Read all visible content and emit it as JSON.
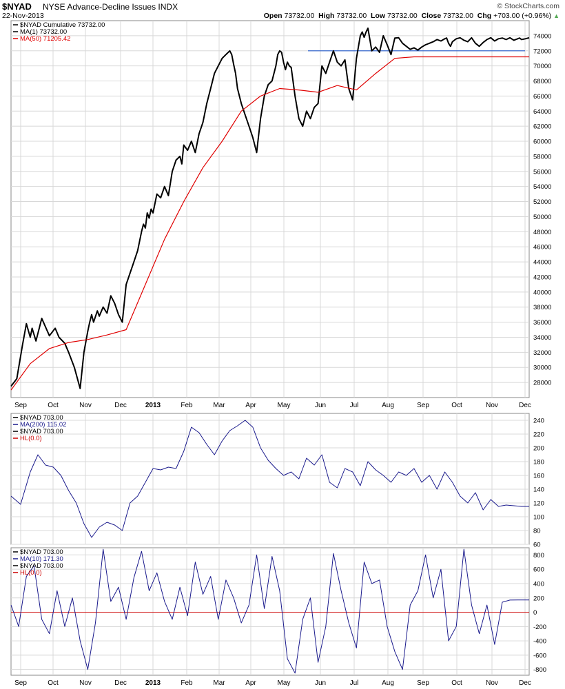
{
  "header": {
    "symbol": "$NYAD",
    "description": "NYSE Advance-Decline Issues  INDX",
    "date": "22-Nov-2013",
    "copyright": "© StockCharts.com",
    "open_label": "Open",
    "open": "73732.00",
    "high_label": "High",
    "high": "73732.00",
    "low_label": "Low",
    "low": "73732.00",
    "close_label": "Close",
    "close": "73732.00",
    "chg_label": "Chg",
    "chg": "+703.00 (+0.96%)"
  },
  "colors": {
    "price": "#000000",
    "ma50": "#e00000",
    "osc": "#1a1a8c",
    "hline": "#3366cc",
    "zero": "#cc0000",
    "grid": "#d8d8d8"
  },
  "months": [
    "Sep",
    "Oct",
    "Nov",
    "Dec",
    "2013",
    "Feb",
    "Mar",
    "Apr",
    "May",
    "Jun",
    "Jul",
    "Aug",
    "Sep",
    "Oct",
    "Nov",
    "Dec"
  ],
  "chart_data": [
    {
      "type": "line",
      "panel": "main",
      "legend": [
        "$NYAD  Cumulative 73732.00",
        "MA(1) 73732.00",
        "MA(50) 71205.42"
      ],
      "ylim": [
        26000,
        76000
      ],
      "yticks": [
        28000,
        30000,
        32000,
        34000,
        36000,
        38000,
        40000,
        42000,
        44000,
        46000,
        48000,
        50000,
        52000,
        54000,
        56000,
        58000,
        60000,
        62000,
        64000,
        66000,
        68000,
        70000,
        72000,
        74000
      ],
      "horizontal_line": 72000,
      "series": [
        {
          "name": "$NYAD  Cumulative",
          "x": [
            0,
            3,
            6,
            8,
            10,
            11,
            13,
            16,
            20,
            23,
            25,
            28,
            30,
            33,
            36,
            38,
            40,
            41,
            42,
            43,
            45,
            46,
            48,
            50,
            52,
            54,
            56,
            58,
            60,
            62,
            64,
            66,
            68,
            69,
            70,
            71,
            72,
            73,
            74,
            76,
            78,
            80,
            82,
            84,
            86,
            88,
            89,
            90,
            92,
            94,
            96,
            98,
            100,
            102,
            104,
            106,
            108,
            110,
            112,
            114,
            115,
            116,
            117,
            118,
            120,
            122,
            124,
            126,
            128,
            130,
            132,
            134,
            136,
            138,
            139,
            140,
            141,
            142,
            143,
            144,
            145,
            146,
            148,
            150,
            152,
            154,
            156,
            158,
            160,
            162,
            164,
            166,
            168,
            170,
            172,
            174,
            176,
            178,
            180,
            182,
            183,
            184,
            185,
            186,
            187,
            188,
            190,
            192,
            194,
            196,
            198,
            200,
            202,
            204,
            206,
            208,
            210,
            212,
            214,
            216,
            218,
            220,
            222,
            224,
            226,
            227,
            228,
            229,
            230,
            232,
            234,
            236,
            238,
            240,
            242,
            244,
            246,
            248,
            250,
            252,
            254,
            256,
            258,
            260,
            262,
            264,
            265,
            266,
            268,
            270
          ],
          "values": [
            27500,
            28500,
            33000,
            35800,
            34000,
            35200,
            33500,
            36500,
            34200,
            35200,
            34000,
            33200,
            32000,
            30000,
            27200,
            32000,
            34800,
            36000,
            37000,
            36000,
            37500,
            36800,
            38000,
            37200,
            39500,
            38500,
            37000,
            36000,
            41000,
            42500,
            44000,
            45500,
            48000,
            49000,
            48500,
            50500,
            49800,
            51000,
            50500,
            53000,
            52500,
            54000,
            52800,
            56000,
            57500,
            58000,
            57000,
            59500,
            58800,
            60000,
            58500,
            61000,
            62500,
            65000,
            67000,
            69000,
            70000,
            71000,
            71500,
            72000,
            71500,
            70200,
            69000,
            67000,
            65000,
            63500,
            62000,
            60500,
            58500,
            63000,
            66000,
            67500,
            68000,
            70000,
            71500,
            72000,
            71800,
            70500,
            69500,
            70500,
            70000,
            69800,
            66000,
            63000,
            62000,
            64000,
            63000,
            64500,
            65000,
            70000,
            69000,
            70500,
            72000,
            70500,
            70000,
            70800,
            67000,
            65500,
            71000,
            74000,
            74500,
            73800,
            74500,
            75000,
            73500,
            72000,
            72500,
            71800,
            74000,
            72800,
            71500,
            73700,
            73732,
            73000,
            72600,
            72200,
            72400,
            72100,
            72500,
            72800,
            73000,
            73200,
            73500,
            73300,
            73600,
            73700,
            73000,
            72600,
            73200,
            73600,
            73732,
            73400,
            73200,
            73732,
            73000,
            72600,
            73100,
            73500,
            73732,
            73300,
            73600,
            73700,
            73500,
            73732,
            73400,
            73600,
            73700,
            73500,
            73600,
            73732
          ],
          "color": "#000000"
        },
        {
          "name": "MA(50)",
          "x": [
            0,
            10,
            20,
            30,
            40,
            50,
            60,
            70,
            80,
            90,
            100,
            110,
            120,
            130,
            140,
            150,
            160,
            170,
            180,
            190,
            200,
            210,
            220,
            230,
            240,
            250,
            260,
            270
          ],
          "values": [
            27000,
            30500,
            32500,
            33300,
            33700,
            34300,
            35000,
            41000,
            47000,
            52000,
            56500,
            60000,
            64000,
            66000,
            67000,
            66800,
            66500,
            67400,
            66800,
            69000,
            71000,
            71200,
            71205,
            71205,
            71205,
            71205,
            71205,
            71205
          ],
          "color": "#e00000"
        }
      ]
    },
    {
      "type": "line",
      "panel": "middle",
      "legend": [
        "$NYAD  703.00",
        "MA(200) 115.02",
        "$NYAD 703.00",
        "HL(0.0)"
      ],
      "ylim": [
        60,
        250
      ],
      "yticks": [
        60,
        80,
        100,
        120,
        140,
        160,
        180,
        200,
        220,
        240
      ],
      "series": [
        {
          "name": "MA(200)",
          "x": [
            0,
            5,
            10,
            14,
            18,
            22,
            26,
            30,
            34,
            38,
            42,
            46,
            50,
            54,
            58,
            62,
            66,
            70,
            74,
            78,
            82,
            86,
            90,
            94,
            98,
            102,
            106,
            110,
            114,
            118,
            122,
            126,
            130,
            134,
            138,
            142,
            146,
            150,
            154,
            158,
            162,
            166,
            170,
            174,
            178,
            182,
            186,
            190,
            194,
            198,
            202,
            206,
            210,
            214,
            218,
            222,
            226,
            230,
            234,
            238,
            242,
            246,
            250,
            254,
            258,
            262,
            266,
            270
          ],
          "values": [
            130,
            118,
            165,
            190,
            175,
            172,
            160,
            138,
            120,
            90,
            70,
            85,
            92,
            88,
            80,
            120,
            130,
            150,
            170,
            168,
            172,
            170,
            195,
            230,
            222,
            205,
            190,
            210,
            225,
            232,
            240,
            230,
            200,
            182,
            170,
            160,
            165,
            155,
            185,
            175,
            190,
            150,
            142,
            170,
            165,
            145,
            180,
            168,
            160,
            150,
            165,
            160,
            170,
            150,
            160,
            140,
            165,
            150,
            130,
            120,
            135,
            110,
            125,
            115,
            117,
            116,
            115,
            115
          ],
          "color": "#1a1a8c"
        }
      ]
    },
    {
      "type": "line",
      "panel": "bottom",
      "legend": [
        "$NYAD  703.00",
        "MA(10) 171.30",
        "$NYAD 703.00",
        "HL(0.0)"
      ],
      "ylim": [
        -880,
        900
      ],
      "yticks": [
        -800,
        -600,
        -400,
        -200,
        0,
        200,
        400,
        600,
        800
      ],
      "zero_line": 0,
      "series": [
        {
          "name": "MA(10)",
          "x": [
            0,
            4,
            8,
            12,
            16,
            20,
            24,
            28,
            32,
            36,
            40,
            44,
            48,
            52,
            56,
            60,
            64,
            68,
            72,
            76,
            80,
            84,
            88,
            92,
            96,
            100,
            104,
            108,
            112,
            116,
            120,
            124,
            128,
            132,
            136,
            140,
            144,
            148,
            152,
            156,
            160,
            164,
            168,
            172,
            176,
            180,
            184,
            188,
            192,
            196,
            200,
            204,
            208,
            212,
            216,
            220,
            224,
            228,
            232,
            236,
            240,
            244,
            248,
            252,
            256,
            260,
            264,
            268,
            270
          ],
          "values": [
            100,
            -200,
            500,
            650,
            -100,
            -300,
            300,
            -200,
            200,
            -400,
            -800,
            -150,
            880,
            150,
            350,
            -100,
            480,
            850,
            300,
            550,
            150,
            -100,
            350,
            -50,
            700,
            250,
            500,
            -100,
            450,
            200,
            -150,
            100,
            800,
            50,
            780,
            300,
            -650,
            -850,
            -100,
            200,
            -700,
            -200,
            820,
            300,
            -150,
            -500,
            700,
            400,
            450,
            -200,
            -550,
            -800,
            100,
            300,
            800,
            200,
            600,
            -400,
            -200,
            880,
            100,
            -300,
            100,
            -450,
            140,
            170,
            171,
            171,
            171
          ],
          "color": "#1a1a8c"
        }
      ]
    }
  ]
}
